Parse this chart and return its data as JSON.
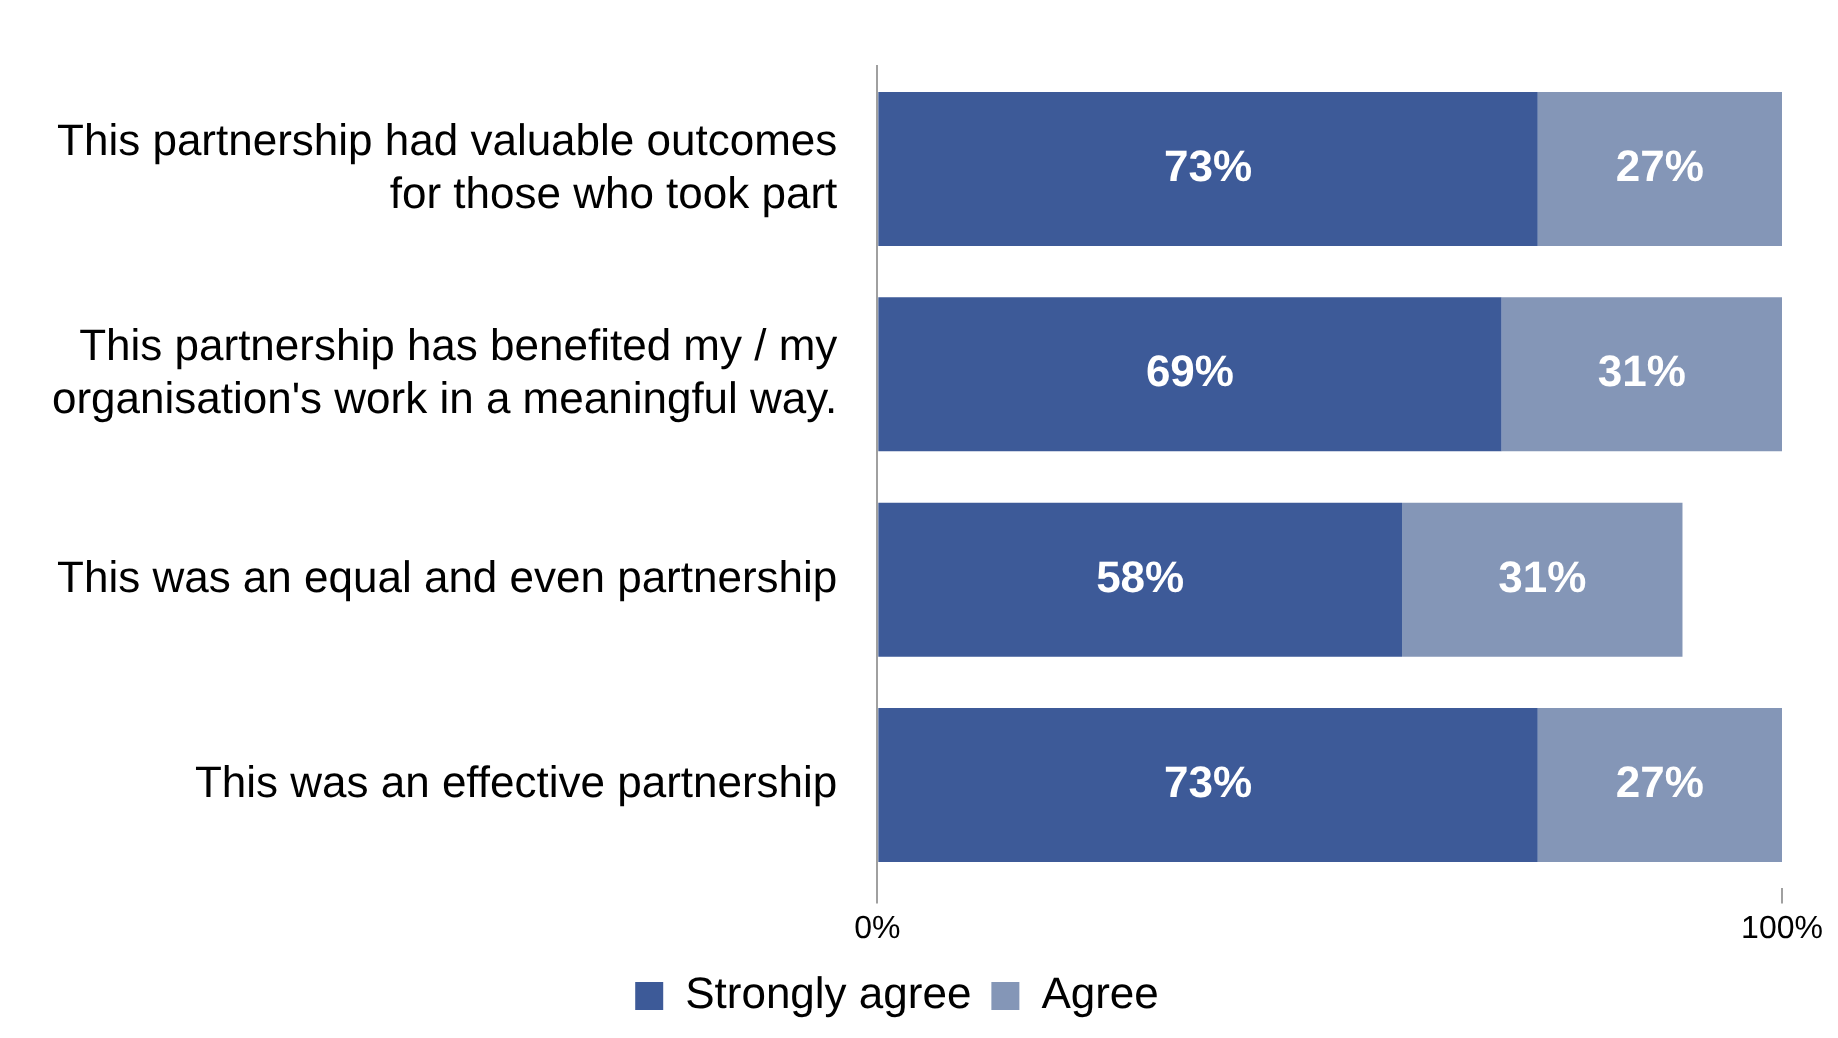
{
  "chart_data": {
    "type": "bar",
    "orientation": "horizontal",
    "stacked": true,
    "categories": [
      "This partnership had valuable outcomes for those who took part",
      "This partnership has benefited my / my organisation's work in a meaningful way.",
      "This was an equal and even partnership",
      "This was an effective partnership"
    ],
    "series": [
      {
        "name": "Strongly agree",
        "color": "#3d5a98",
        "values": [
          73,
          69,
          58,
          73
        ],
        "value_labels": [
          "73%",
          "69%",
          "58%",
          "73%"
        ]
      },
      {
        "name": "Agree",
        "color": "#8496b7",
        "values": [
          27,
          31,
          31,
          27
        ],
        "value_labels": [
          "27%",
          "31%",
          "31%",
          "27%"
        ]
      }
    ],
    "xlim": [
      0,
      100
    ],
    "xticks": [
      {
        "value": 0,
        "label": "0%"
      },
      {
        "value": 100,
        "label": "100%"
      }
    ],
    "grid": false,
    "legend": "bottom"
  }
}
